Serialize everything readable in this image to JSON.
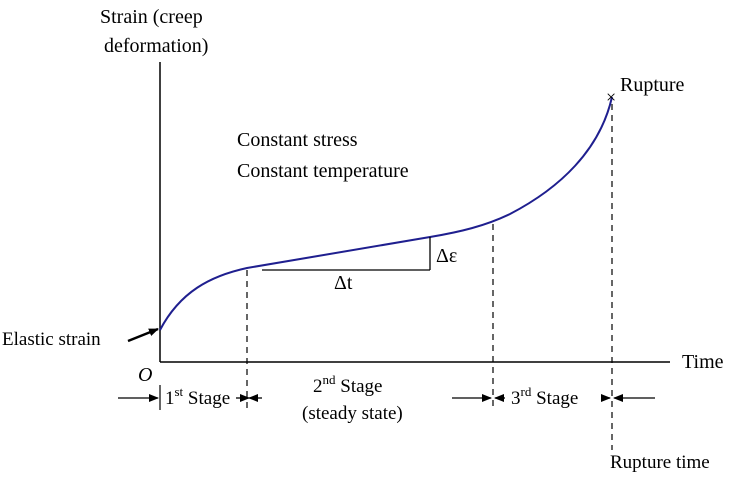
{
  "axes": {
    "y_label_line1": "Strain (creep",
    "y_label_line2": "deformation)",
    "x_label": "Time",
    "origin": "O"
  },
  "conditions": {
    "line1": "Constant stress",
    "line2": "Constant temperature"
  },
  "annotations": {
    "rupture": "Rupture",
    "rupture_marker": "×",
    "elastic_strain": "Elastic strain",
    "delta_epsilon": "Δε",
    "delta_t": "Δt",
    "rupture_time": "Rupture time"
  },
  "stages": {
    "s1_num": "1",
    "s1_sup": "st",
    "s1_text": " Stage",
    "s2_num": "2",
    "s2_sup": "nd",
    "s2_text": " Stage",
    "s2_sub": "(steady state)",
    "s3_num": "3",
    "s3_sup": "rd",
    "s3_text": " Stage"
  },
  "colors": {
    "curve": "#1f1f8f",
    "lines": "#000000"
  }
}
